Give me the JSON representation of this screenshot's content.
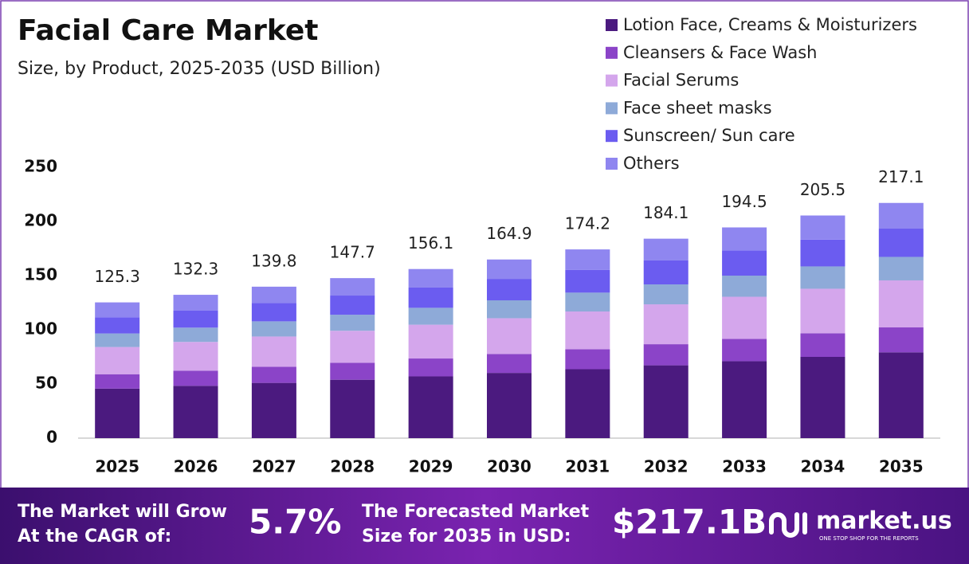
{
  "chart_data": {
    "type": "stacked-bar",
    "title": "Facial Care Market",
    "subtitle": "Size, by Product, 2025-2035 (USD Billion)",
    "categories": [
      "2025",
      "2026",
      "2027",
      "2028",
      "2029",
      "2030",
      "2031",
      "2032",
      "2033",
      "2034",
      "2035"
    ],
    "series": [
      {
        "name": "Lotion Face, Creams & Moisturizers",
        "color": "#4b1a7f",
        "values": [
          45.7,
          48.3,
          51.0,
          53.9,
          57.0,
          60.2,
          63.6,
          67.2,
          71.0,
          75.0,
          79.2
        ]
      },
      {
        "name": "Cleansers & Face Wash",
        "color": "#8b44c8",
        "values": [
          13.3,
          14.0,
          14.8,
          15.7,
          16.5,
          17.5,
          18.5,
          19.5,
          20.6,
          21.8,
          23.0
        ]
      },
      {
        "name": "Facial Serums",
        "color": "#d4a6ec",
        "values": [
          25.1,
          26.5,
          28.0,
          29.5,
          31.2,
          33.0,
          34.8,
          36.8,
          38.9,
          41.1,
          43.4
        ]
      },
      {
        "name": "Face sheet masks",
        "color": "#8eaad8",
        "values": [
          12.5,
          13.2,
          14.0,
          14.8,
          15.6,
          16.5,
          17.4,
          18.4,
          19.5,
          20.6,
          21.7
        ]
      },
      {
        "name": "Sunscreen/ Sun care",
        "color": "#6b5cf0",
        "values": [
          15.0,
          15.9,
          16.8,
          17.7,
          18.7,
          19.8,
          20.9,
          22.1,
          23.3,
          24.7,
          26.1
        ]
      },
      {
        "name": "Others",
        "color": "#8f86f0",
        "values": [
          13.7,
          14.4,
          15.2,
          16.1,
          17.1,
          17.9,
          19.0,
          20.1,
          21.2,
          22.3,
          23.7
        ]
      }
    ],
    "totals": [
      125.3,
      132.3,
      139.8,
      147.7,
      156.1,
      164.9,
      174.2,
      184.1,
      194.5,
      205.5,
      217.1
    ],
    "ylim": [
      0,
      250
    ],
    "yticks": [
      0,
      50,
      100,
      150,
      200,
      250
    ],
    "grid": false,
    "legend": "top-right"
  },
  "footer": {
    "cagr_text": [
      "The Market will Grow",
      "At the CAGR of:"
    ],
    "cagr": "5.7%",
    "forecast_text": [
      "The Forecasted Market",
      "Size for 2035 in USD:"
    ],
    "forecast": "$217.1B",
    "logo": "market.us",
    "tagline": "ONE STOP SHOP FOR THE REPORTS"
  }
}
